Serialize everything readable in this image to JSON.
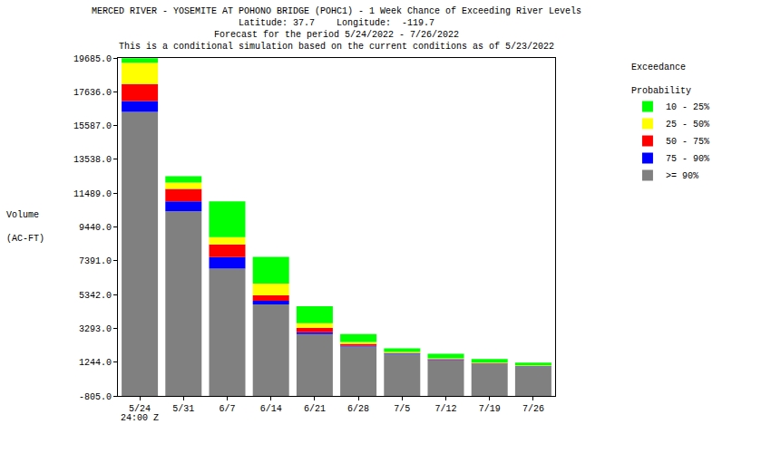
{
  "chart_data": {
    "type": "bar",
    "stacked": true,
    "title": [
      "MERCED RIVER - YOSEMITE AT POHONO BRIDGE (POHC1) - 1 Week Chance of Exceeding River Levels",
      "Latitude: 37.7    Longitude:  -119.7",
      "Forecast for the period 5/24/2022 - 7/26/2022",
      "This is a conditional simulation based on the current conditions as of 5/23/2022"
    ],
    "ylabel": [
      "Volume",
      "(AC-FT)"
    ],
    "annotations": [
      {
        "category": "5/24",
        "text": "24:00 Z"
      }
    ],
    "legend_title": [
      "Exceedance",
      "Probability"
    ],
    "legend": "right",
    "grid": false,
    "categories": [
      "5/24",
      "5/31",
      "6/7",
      "6/14",
      "6/21",
      "6/28",
      "7/5",
      "7/12",
      "7/19",
      "7/26"
    ],
    "series": [
      {
        "name": ">= 90%",
        "color": "#808080",
        "values": [
          16420,
          10390,
          6910,
          4740,
          2950,
          2190,
          1750,
          1370,
          1150,
          990
        ]
      },
      {
        "name": "75 - 90%",
        "color": "#0000ff",
        "values": [
          650,
          600,
          710,
          220,
          110,
          50,
          30,
          30,
          15,
          15
        ]
      },
      {
        "name": "50 - 75%",
        "color": "#ff0000",
        "values": [
          1030,
          760,
          760,
          330,
          270,
          110,
          30,
          30,
          15,
          15
        ]
      },
      {
        "name": "25 - 50%",
        "color": "#ffff00",
        "values": [
          1300,
          380,
          440,
          710,
          270,
          110,
          50,
          50,
          30,
          30
        ]
      },
      {
        "name": "10 - 25%",
        "color": "#00ff00",
        "values": [
          270,
          380,
          2170,
          1630,
          1030,
          490,
          220,
          270,
          220,
          160
        ]
      }
    ],
    "ylim": [
      -805,
      19685
    ],
    "yticks": [
      {
        "value": -805,
        "label": "-805.0"
      },
      {
        "value": 1244,
        "label": "1244.0"
      },
      {
        "value": 3293,
        "label": "3293.0"
      },
      {
        "value": 5342,
        "label": "5342.0"
      },
      {
        "value": 7391,
        "label": "7391.0"
      },
      {
        "value": 9440,
        "label": "9440.0"
      },
      {
        "value": 11489,
        "label": "11489.0"
      },
      {
        "value": 13538,
        "label": "13538.0"
      },
      {
        "value": 15587,
        "label": "15587.0"
      },
      {
        "value": 17636,
        "label": "17636.0"
      },
      {
        "value": 19685,
        "label": "19685.0"
      }
    ]
  }
}
